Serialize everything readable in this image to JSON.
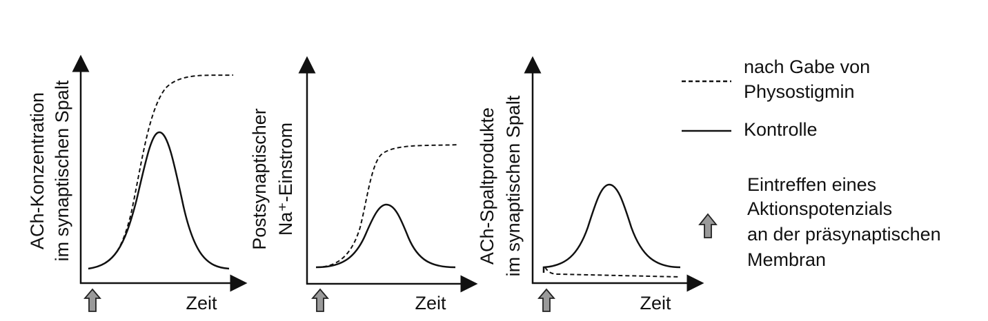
{
  "panels": [
    {
      "y_label": [
        "ACh-Konzentration",
        "im synaptischen Spalt"
      ],
      "x_label": "Zeit"
    },
    {
      "y_label": [
        "Postsynaptischer",
        "Na⁺-Einstrom"
      ],
      "x_label": "Zeit"
    },
    {
      "y_label": [
        "ACh-Spaltprodukte",
        "im synaptischen Spalt"
      ],
      "x_label": "Zeit"
    }
  ],
  "legend": {
    "dashed": [
      "nach Gabe von",
      "Physostigmin"
    ],
    "solid": "Kontrolle",
    "arrow": [
      "Eintreffen eines",
      "Aktionspotenzials",
      "an der präsynaptischen",
      "Membran"
    ]
  }
}
